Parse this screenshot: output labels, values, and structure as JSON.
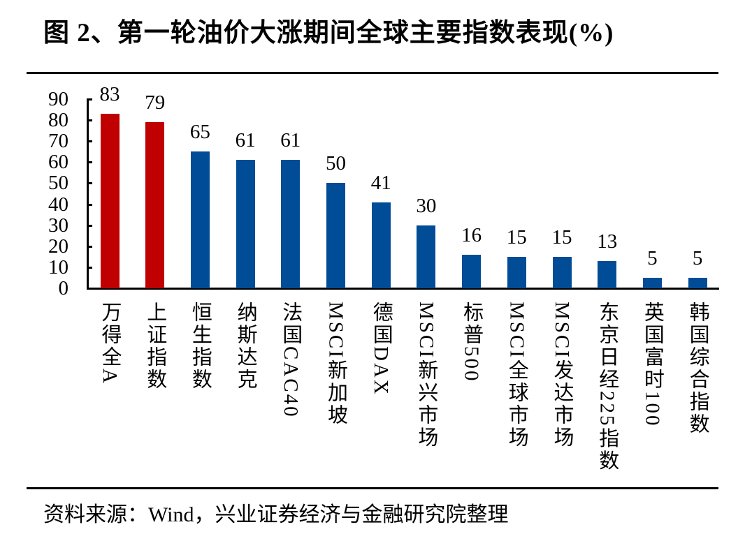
{
  "title": "图 2、第一轮油价大涨期间全球主要指数表现(%)",
  "source": "资料来源：Wind，兴业证券经济与金融研究院整理",
  "colors": {
    "highlight": "#C00000",
    "default": "#004C97"
  },
  "chart_data": {
    "type": "bar",
    "title": "图 2、第一轮油价大涨期间全球主要指数表现(%)",
    "xlabel": "",
    "ylabel": "",
    "ylim": [
      0,
      90
    ],
    "yticks": [
      0,
      10,
      20,
      30,
      40,
      50,
      60,
      70,
      80,
      90
    ],
    "grid": false,
    "legend": null,
    "categories": [
      "万得全A",
      "上证指数",
      "恒生指数",
      "纳斯达克",
      "法国CAC40",
      "MSCI新加坡",
      "德国DAX",
      "MSCI新兴市场",
      "标普500",
      "MSCI全球市场",
      "MSCI发达市场",
      "东京日经225指数",
      "英国富时100",
      "韩国综合指数"
    ],
    "values": [
      83,
      79,
      65,
      61,
      61,
      50,
      41,
      30,
      16,
      15,
      15,
      13,
      5,
      5
    ],
    "bar_colors": [
      "#C00000",
      "#C00000",
      "#004C97",
      "#004C97",
      "#004C97",
      "#004C97",
      "#004C97",
      "#004C97",
      "#004C97",
      "#004C97",
      "#004C97",
      "#004C97",
      "#004C97",
      "#004C97"
    ],
    "data_labels": [
      "83",
      "79",
      "65",
      "61",
      "61",
      "50",
      "41",
      "30",
      "16",
      "15",
      "15",
      "13",
      "5",
      "5"
    ]
  }
}
